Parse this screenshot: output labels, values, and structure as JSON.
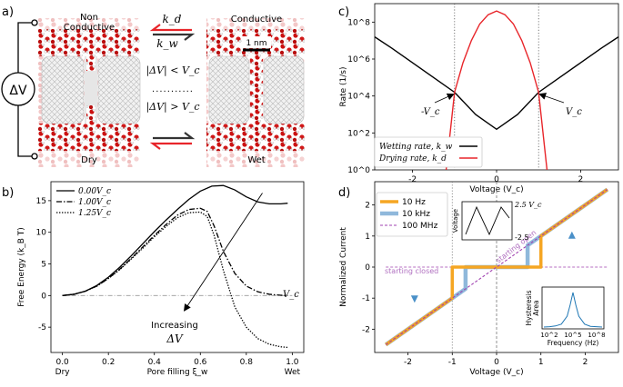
{
  "panels": {
    "a": {
      "letter": "a)",
      "left_title": [
        "Non",
        "Conductive"
      ],
      "right_title": "Conductive",
      "left_bottom": "Dry",
      "right_bottom": "Wet",
      "scale_bar": "1 nm",
      "kd": "k_d",
      "kw": "k_w",
      "cond_upper": "|ΔV| < V_c",
      "cond_lower": "|ΔV| > V_c",
      "dots": "...........",
      "source": "ΔV",
      "colors": {
        "oxygen": "#cc1111",
        "hydrogen": "#f2f2f2",
        "red_arrow": "#e8252a",
        "dark_arrow": "#333333"
      }
    },
    "b": {
      "letter": "b)",
      "anno_vc": "V_c",
      "anno_increasing": "Increasing",
      "anno_dv": "ΔV"
    },
    "c": {
      "letter": "c)",
      "anno_neg_vc": "-V_c",
      "anno_vc": "V_c"
    },
    "d": {
      "letter": "d)",
      "starting_closed": "starting closed",
      "starting_open": "starting open",
      "inset_voltage": {
        "ylabel": "Voltage",
        "top": "2.5 V_c",
        "bottom": "-2.5"
      },
      "inset_hysteresis": {
        "ylabel": [
          "Hysteresis",
          "Area"
        ],
        "xlabel": "Frequency (Hz)",
        "ticks": [
          "10^2",
          "10^5",
          "10^8"
        ]
      }
    }
  },
  "chart_data": [
    {
      "id": "b",
      "type": "line",
      "title": "",
      "xlabel": "Pore filling ξ_w",
      "ylabel": "Free Energy (k_B T)",
      "xlim": [
        -0.05,
        1.05
      ],
      "ylim": [
        -9,
        18
      ],
      "xticks": [
        0.0,
        0.2,
        0.4,
        0.6,
        0.8,
        1.0
      ],
      "xtick_labels": [
        "0.0",
        "0.2",
        "0.4",
        "0.6",
        "0.8",
        "1.0"
      ],
      "x_extra_labels": [
        {
          "x": 0.0,
          "label": "Dry"
        },
        {
          "x": 1.0,
          "label": "Wet"
        }
      ],
      "yticks": [
        -5,
        0,
        5,
        10,
        15
      ],
      "ytick_labels": [
        "-5",
        "0",
        "5",
        "10",
        "15"
      ],
      "legend_position": "top-left",
      "series": [
        {
          "name": "0.00V_c",
          "style": "solid",
          "x": [
            0,
            0.05,
            0.1,
            0.15,
            0.2,
            0.25,
            0.3,
            0.35,
            0.4,
            0.45,
            0.5,
            0.55,
            0.6,
            0.65,
            0.7,
            0.75,
            0.8,
            0.85,
            0.9,
            0.95,
            0.98
          ],
          "y": [
            0,
            0.2,
            0.7,
            1.6,
            2.9,
            4.5,
            6.3,
            8.2,
            10.1,
            11.9,
            13.6,
            15.2,
            16.5,
            17.3,
            17.4,
            16.7,
            15.6,
            14.8,
            14.5,
            14.5,
            14.6
          ]
        },
        {
          "name": "1.00V_c",
          "style": "dashdot",
          "x": [
            0,
            0.05,
            0.1,
            0.15,
            0.2,
            0.25,
            0.3,
            0.35,
            0.4,
            0.45,
            0.5,
            0.55,
            0.6,
            0.63,
            0.66,
            0.7,
            0.75,
            0.8,
            0.85,
            0.9,
            0.95,
            0.98
          ],
          "y": [
            0,
            0.2,
            0.7,
            1.5,
            2.7,
            4.2,
            5.9,
            7.7,
            9.5,
            11.2,
            12.7,
            13.6,
            13.8,
            13.3,
            11.0,
            7.0,
            3.5,
            1.5,
            0.6,
            0.2,
            0.05,
            0.0
          ]
        },
        {
          "name": "1.25V_c",
          "style": "dotted",
          "x": [
            0,
            0.05,
            0.1,
            0.15,
            0.2,
            0.25,
            0.3,
            0.35,
            0.4,
            0.45,
            0.5,
            0.55,
            0.6,
            0.63,
            0.66,
            0.7,
            0.75,
            0.8,
            0.85,
            0.9,
            0.95,
            0.98
          ],
          "y": [
            0,
            0.2,
            0.7,
            1.5,
            2.7,
            4.1,
            5.8,
            7.5,
            9.3,
            10.9,
            12.3,
            13.1,
            13.2,
            12.5,
            9.5,
            4.0,
            -1.8,
            -5.0,
            -6.8,
            -7.7,
            -8.1,
            -8.2
          ]
        }
      ],
      "reference_lines": [
        {
          "y": 0,
          "style": "dashdot",
          "color": "#999999",
          "x": [
            0,
            1
          ]
        }
      ],
      "arrow": {
        "from": [
          0.87,
          16.2
        ],
        "to": [
          0.53,
          -2.4
        ]
      }
    },
    {
      "id": "c",
      "type": "line",
      "title": "",
      "xlabel": "Voltage (V_c)",
      "ylabel": "Rate (1/s)",
      "yscale": "log",
      "xlim": [
        -2.9,
        2.9
      ],
      "ylim_log10": [
        0,
        9
      ],
      "xticks": [
        -2,
        0,
        2
      ],
      "xtick_labels": [
        "-2",
        "0",
        "2"
      ],
      "yticks_log10": [
        0,
        2,
        4,
        6,
        8
      ],
      "ytick_labels": [
        "10^0",
        "10^2",
        "10^4",
        "10^6",
        "10^8"
      ],
      "vlines": [
        {
          "x": -1,
          "style": "dotted"
        },
        {
          "x": 1,
          "style": "dotted"
        }
      ],
      "legend_position": "bottom-center",
      "series": [
        {
          "name": "Wetting rate, k_w",
          "color": "#000000",
          "x": [
            -2.9,
            -2.5,
            -2.0,
            -1.5,
            -1.0,
            -0.5,
            0.0,
            0.5,
            1.0,
            1.5,
            2.0,
            2.5,
            2.9
          ],
          "y_log10": [
            7.2,
            6.6,
            5.8,
            5.0,
            4.2,
            3.0,
            2.2,
            3.0,
            4.2,
            5.0,
            5.8,
            6.6,
            7.2
          ]
        },
        {
          "name": "Drying rate, k_d",
          "color": "#e8252a",
          "x": [
            -1.2,
            -1.0,
            -0.8,
            -0.6,
            -0.4,
            -0.2,
            0.0,
            0.2,
            0.4,
            0.6,
            0.8,
            1.0,
            1.2
          ],
          "y_log10": [
            0.0,
            4.2,
            5.8,
            7.0,
            7.9,
            8.4,
            8.6,
            8.4,
            7.9,
            7.0,
            5.8,
            4.2,
            0.0
          ]
        }
      ]
    },
    {
      "id": "d",
      "type": "line",
      "title": "",
      "xlabel": "Voltage (V_c)",
      "ylabel": "Normalized Current",
      "xlim": [
        -2.75,
        2.75
      ],
      "ylim": [
        -2.75,
        2.75
      ],
      "xticks": [
        -2,
        -1,
        0,
        1,
        2
      ],
      "xtick_labels": [
        "-2",
        "-1",
        "0",
        "1",
        "2"
      ],
      "yticks": [
        -2,
        -1,
        0,
        1,
        2
      ],
      "ytick_labels": [
        "-2",
        "-1",
        "0",
        "1",
        "2"
      ],
      "vlines": [
        {
          "x": -1,
          "style": "dotted"
        },
        {
          "x": 0,
          "style": "dotted"
        }
      ],
      "legend_position": "top-left",
      "series": [
        {
          "name": "10 Hz",
          "color": "#f5a623",
          "x": [
            -2.5,
            -1.0,
            -1.0,
            1.0,
            1.0,
            2.5
          ],
          "y": [
            -2.5,
            -1.0,
            0,
            0,
            1.0,
            2.5
          ]
        },
        {
          "name": "10 kHz",
          "color": "#8fb8db",
          "x": [
            -2.5,
            -0.7,
            -0.7,
            0.7,
            0.7,
            2.5
          ],
          "y": [
            -2.5,
            -0.7,
            0,
            0,
            0.7,
            2.5
          ]
        },
        {
          "name": "100 MHz",
          "color": "#a040b0",
          "x": [
            -2.5,
            2.5
          ],
          "y": [
            -2.5,
            2.5
          ]
        }
      ],
      "inset_hysteresis_curve": {
        "x_log10": [
          0,
          1,
          2,
          3,
          4,
          4.5,
          5,
          5.5,
          6,
          7,
          8,
          9,
          10
        ],
        "y": [
          0,
          0.01,
          0.03,
          0.08,
          0.3,
          0.6,
          0.95,
          0.6,
          0.3,
          0.08,
          0.02,
          0.01,
          0
        ]
      }
    }
  ]
}
